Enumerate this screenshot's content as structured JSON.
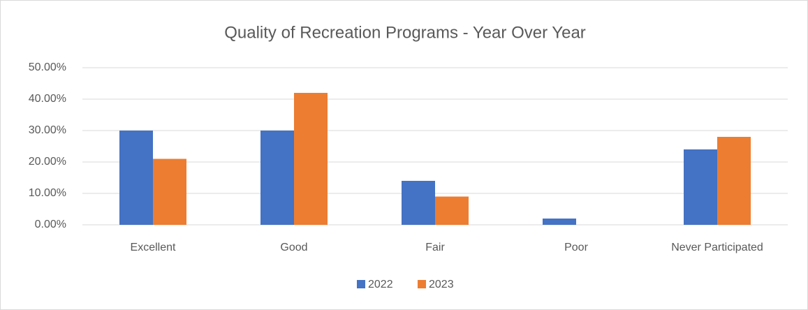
{
  "chart_data": {
    "type": "bar",
    "title": "Quality of Recreation Programs - Year Over Year",
    "categories": [
      "Excellent",
      "Good",
      "Fair",
      "Poor",
      "Never Participated"
    ],
    "series": [
      {
        "name": "2022",
        "color": "#4472c4",
        "values": [
          30,
          30,
          14,
          2,
          24
        ]
      },
      {
        "name": "2023",
        "color": "#ed7d31",
        "values": [
          21,
          42,
          9,
          0,
          28
        ]
      }
    ],
    "ylim": [
      0,
      50
    ],
    "yticks": [
      {
        "value": 0,
        "label": "0.00%"
      },
      {
        "value": 10,
        "label": "10.00%"
      },
      {
        "value": 20,
        "label": "20.00%"
      },
      {
        "value": 30,
        "label": "30.00%"
      },
      {
        "value": 40,
        "label": "40.00%"
      },
      {
        "value": 50,
        "label": "50.00%"
      }
    ],
    "grid": true,
    "legend": "bottom"
  }
}
